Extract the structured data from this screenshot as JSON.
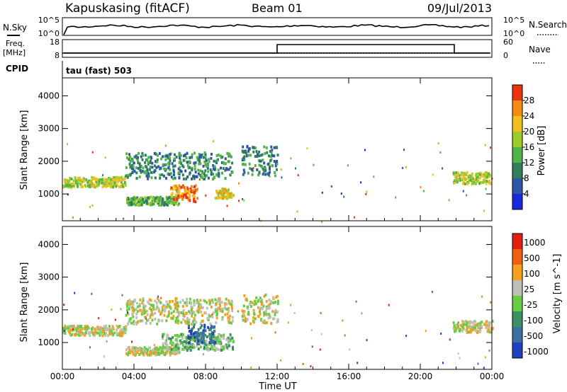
{
  "header": {
    "station": "Kapuskasing (fitACF)",
    "beam": "Beam 01",
    "date": "09/Jul/2013"
  },
  "params": {
    "nsky_label": "N.Sky",
    "nsearch_label": "N.Search",
    "freq_label": "Freq.",
    "freq_unit": "[MHz]",
    "nave_label": "Nave",
    "cpid_label": "CPID",
    "cpid_value": "tau (fast) 503",
    "noise_ticks_left": [
      "10^5",
      "10^0"
    ],
    "noise_ticks_right": [
      "10^5",
      "10^0"
    ],
    "freq_ticks": [
      "18",
      "8"
    ],
    "nave_ticks": [
      "60",
      "0"
    ]
  },
  "chart_data": [
    {
      "type": "heatmap",
      "title": "",
      "xlabel": "Time UT",
      "ylabel": "Slant Range [km]",
      "x_ticks": [
        "00:00",
        "04:00",
        "08:00",
        "12:00",
        "16:00",
        "20:00",
        "00:00"
      ],
      "xlim_hours": [
        0,
        24
      ],
      "y_ticks": [
        1000,
        2000,
        3000,
        4000
      ],
      "ylim_km": [
        180,
        4550
      ],
      "colorbar": {
        "label": "Power [dB]",
        "ticks": [
          "4",
          "8",
          "12",
          "16",
          "20",
          "24",
          "28"
        ],
        "colors": [
          "#1a28e0",
          "#2e56a8",
          "#2e7f5a",
          "#4fb34a",
          "#9ccc2c",
          "#f0c020",
          "#f58a10",
          "#e8350c"
        ]
      },
      "echo_bands": [
        {
          "t0": 0.0,
          "t1": 3.5,
          "r0": 1250,
          "r1": 1550,
          "level": 4
        },
        {
          "t0": 3.5,
          "t1": 9.5,
          "r0": 1500,
          "r1": 2300,
          "level": 2
        },
        {
          "t0": 3.5,
          "t1": 6.5,
          "r0": 700,
          "r1": 950,
          "level": 3
        },
        {
          "t0": 6.0,
          "t1": 7.5,
          "r0": 800,
          "r1": 1300,
          "level": 6
        },
        {
          "t0": 8.5,
          "t1": 9.5,
          "r0": 900,
          "r1": 1200,
          "level": 5
        },
        {
          "t0": 10.0,
          "t1": 12.0,
          "r0": 1600,
          "r1": 2500,
          "level": 2
        },
        {
          "t0": 21.8,
          "t1": 24.0,
          "r0": 1350,
          "r1": 1700,
          "level": 4
        }
      ]
    },
    {
      "type": "heatmap",
      "title": "",
      "xlabel": "Time UT",
      "ylabel": "Slant Range [km]",
      "x_ticks": [
        "00:00",
        "04:00",
        "08:00",
        "12:00",
        "16:00",
        "20:00",
        "00:00"
      ],
      "xlim_hours": [
        0,
        24
      ],
      "y_ticks": [
        1000,
        2000,
        3000,
        4000
      ],
      "ylim_km": [
        180,
        4550
      ],
      "colorbar": {
        "label": "Velocity [m s^-1]",
        "ticks": [
          "1000",
          "500",
          "100",
          "25",
          "-25",
          "-100",
          "-500",
          "-1000"
        ],
        "colors": [
          "#2040c0",
          "#3a6fa0",
          "#3a9060",
          "#66cc44",
          "#bfbfb5",
          "#f5a020",
          "#f06010",
          "#e02010"
        ]
      },
      "echo_bands": [
        {
          "t0": 0.0,
          "t1": 3.5,
          "r0": 1250,
          "r1": 1550,
          "level": 4
        },
        {
          "t0": 3.5,
          "t1": 9.5,
          "r0": 1600,
          "r1": 2400,
          "level": 4
        },
        {
          "t0": 3.5,
          "t1": 6.5,
          "r0": 650,
          "r1": 900,
          "level": 4
        },
        {
          "t0": 5.5,
          "t1": 9.5,
          "r0": 800,
          "r1": 1300,
          "level": 3
        },
        {
          "t0": 7.0,
          "t1": 8.5,
          "r0": 1000,
          "r1": 1600,
          "level": 1
        },
        {
          "t0": 10.0,
          "t1": 12.0,
          "r0": 1600,
          "r1": 2500,
          "level": 4
        },
        {
          "t0": 21.8,
          "t1": 24.0,
          "r0": 1350,
          "r1": 1700,
          "level": 4
        }
      ]
    }
  ]
}
